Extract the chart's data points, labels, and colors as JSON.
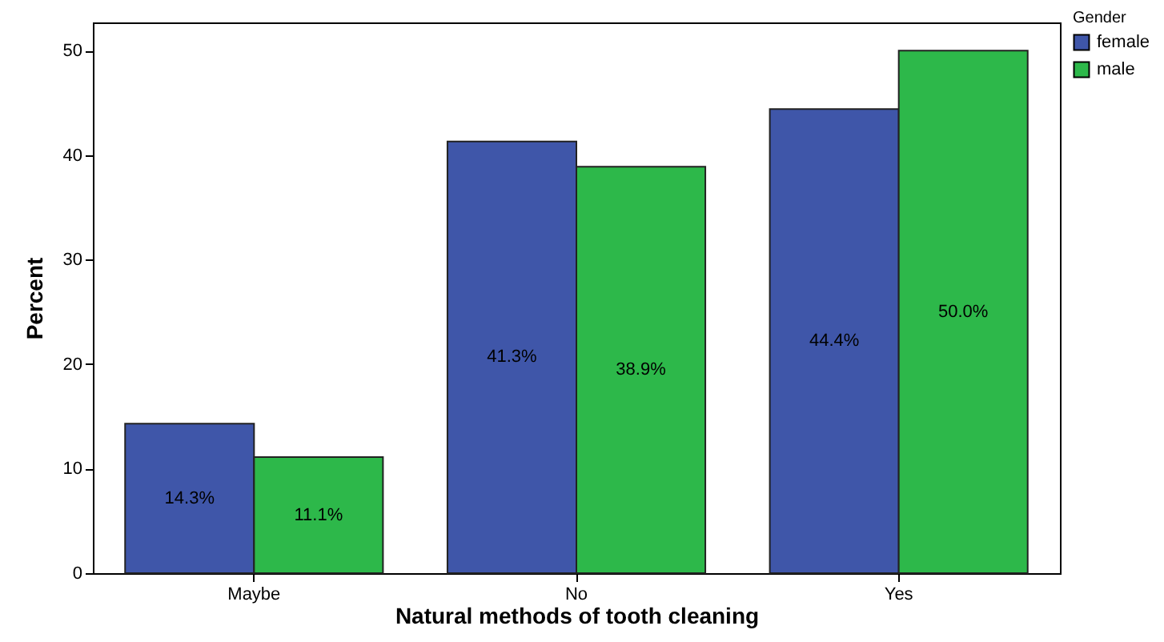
{
  "chart_data": {
    "type": "bar",
    "xlabel": "Natural methods of tooth cleaning",
    "ylabel": "Percent",
    "legend_title": "Gender",
    "legend": "top right",
    "grid": false,
    "categories": [
      "Maybe",
      "No",
      "Yes"
    ],
    "series": [
      {
        "name": "female",
        "color": "#3f56a9",
        "values": [
          14.3,
          41.3,
          44.4
        ],
        "value_labels": [
          "14.3%",
          "41.3%",
          "44.4%"
        ]
      },
      {
        "name": "male",
        "color": "#2db84a",
        "values": [
          11.1,
          38.9,
          50.0
        ],
        "value_labels": [
          "11.1%",
          "38.9%",
          "50.0%"
        ]
      }
    ],
    "ylim": [
      0,
      52.7
    ],
    "yticks": [
      0,
      10,
      20,
      30,
      40,
      50
    ]
  }
}
